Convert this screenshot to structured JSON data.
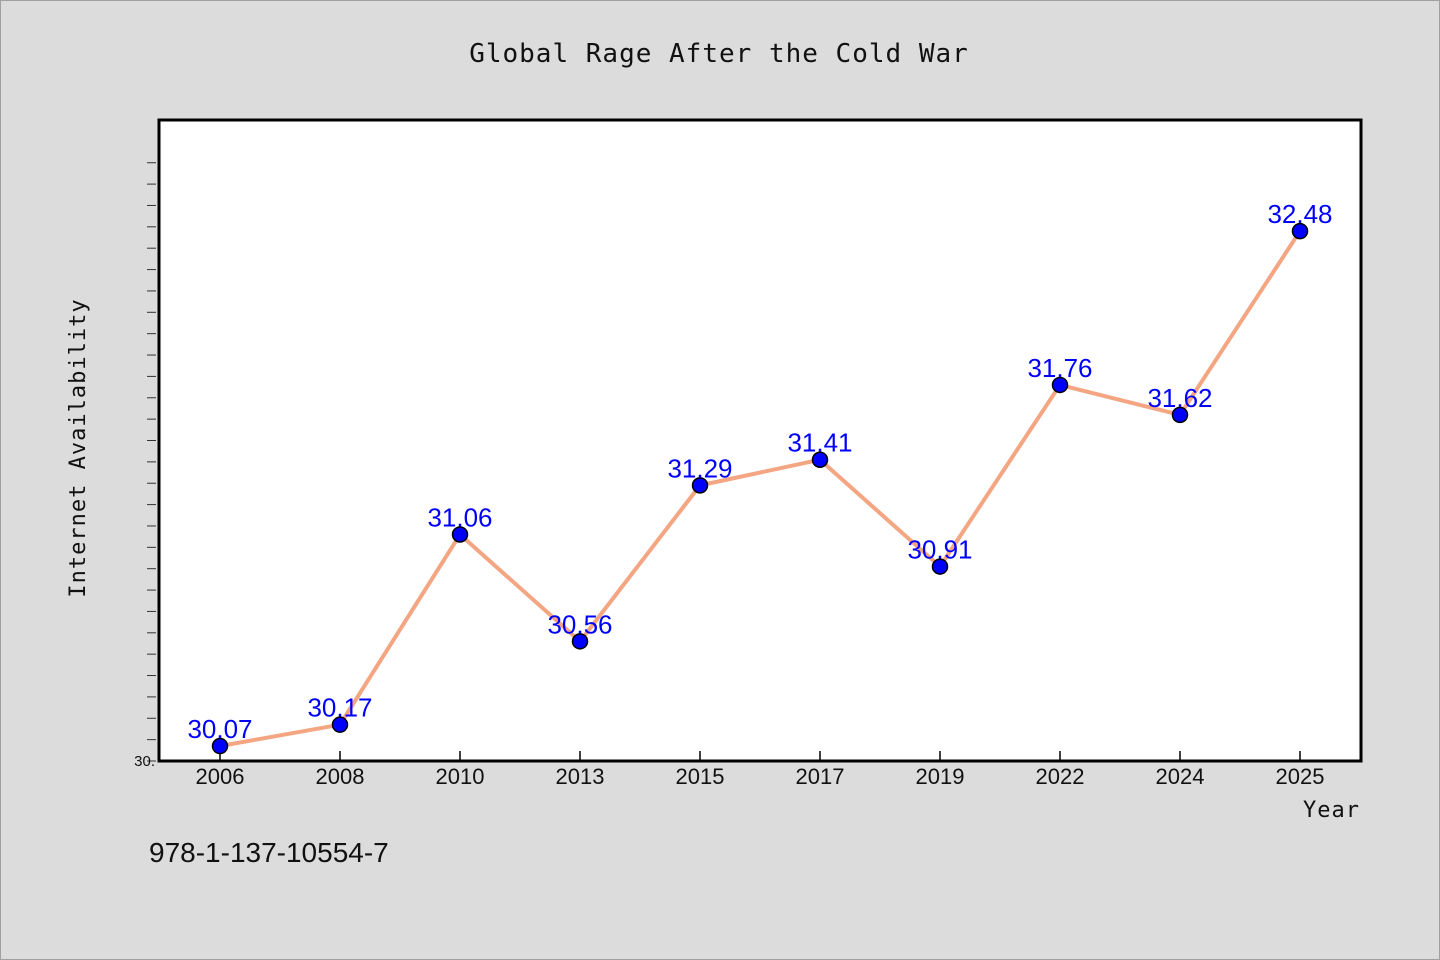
{
  "chart_data": {
    "type": "line",
    "title": "Global Rage After the Cold War",
    "xlabel": "Year",
    "ylabel": "Internet Availability",
    "categories": [
      "2006",
      "2008",
      "2010",
      "2013",
      "2015",
      "2017",
      "2019",
      "2022",
      "2024",
      "2025"
    ],
    "series": [
      {
        "values": [
          30.07,
          30.17,
          31.06,
          30.56,
          31.29,
          31.41,
          30.91,
          31.76,
          31.62,
          32.48
        ],
        "labels": [
          "30.07",
          "30.17",
          "31.06",
          "30.56",
          "31.29",
          "31.41",
          "30.91",
          "31.76",
          "31.62",
          "32.48"
        ]
      }
    ],
    "ylim": [
      30.0,
      33.0
    ],
    "y_min_label": "30.",
    "grid": false,
    "line_color": "#f4a582",
    "marker_color": "#0000ff"
  },
  "footer": {
    "isbn": "978-1-137-10554-7"
  }
}
